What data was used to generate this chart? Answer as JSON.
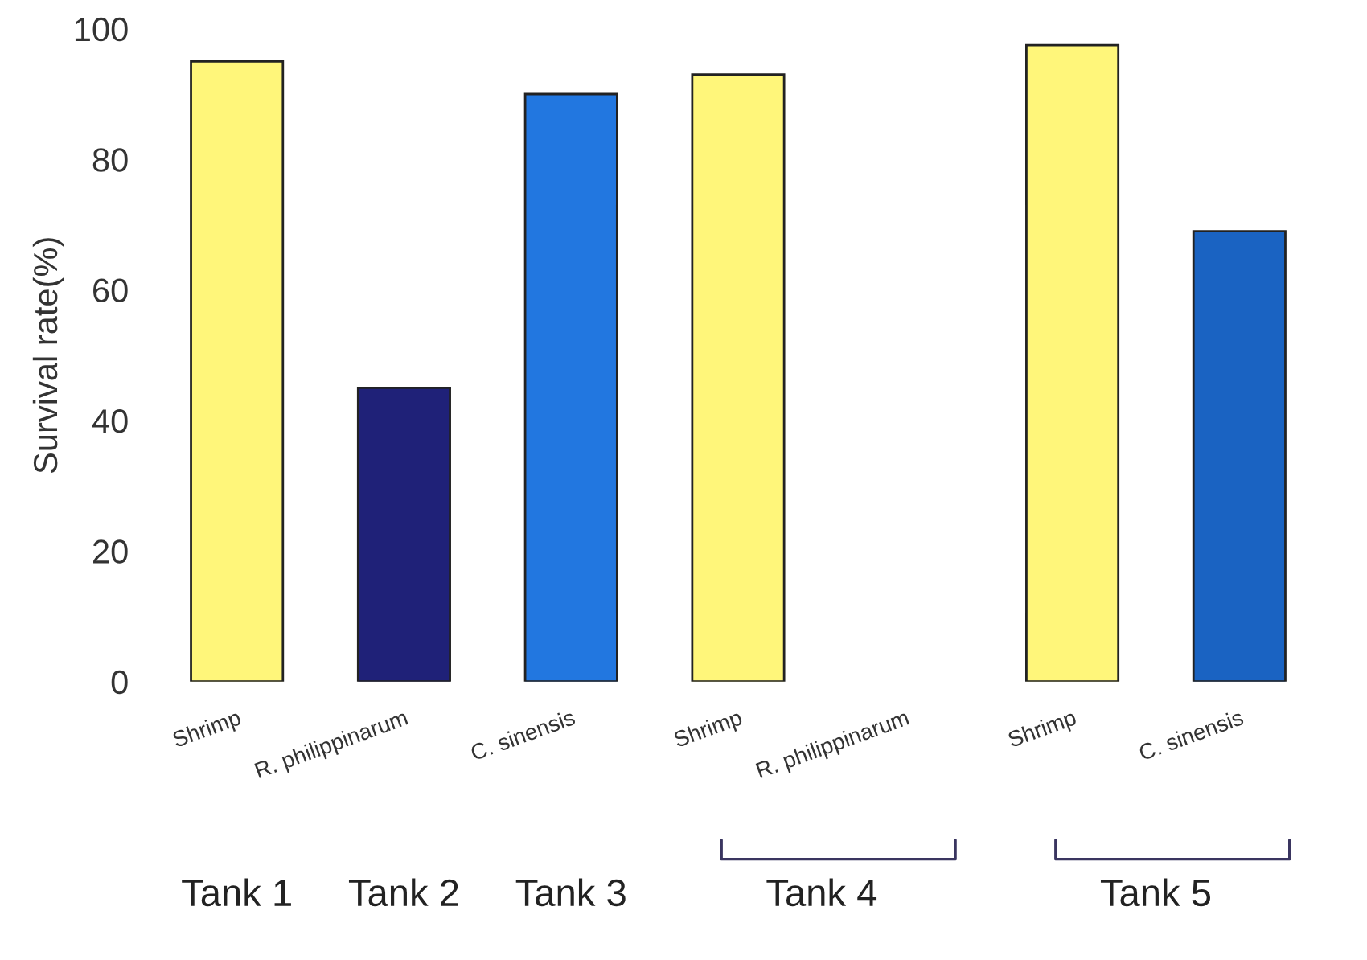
{
  "chart_data": {
    "type": "bar",
    "ylabel": "Survival rate(%)",
    "categories": [
      "Shrimp",
      "R. philippinarum",
      "C. sinensis",
      "Shrimp",
      "R. philippinarum",
      "Shrimp",
      "C. sinensis"
    ],
    "values": [
      95,
      45,
      90,
      93,
      null,
      97.5,
      69
    ],
    "colors": [
      "#fff67a",
      "#1f2178",
      "#2277e0",
      "#fff67a",
      "#1f2178",
      "#fff67a",
      "#1a63c2"
    ],
    "ylim": [
      0,
      100
    ],
    "yticks": [
      0,
      20,
      40,
      60,
      80,
      100
    ],
    "grid": false,
    "annotations": [
      "Tank 1",
      "Tank 2",
      "Tank 3",
      "Tank 4",
      "Tank 5"
    ]
  }
}
